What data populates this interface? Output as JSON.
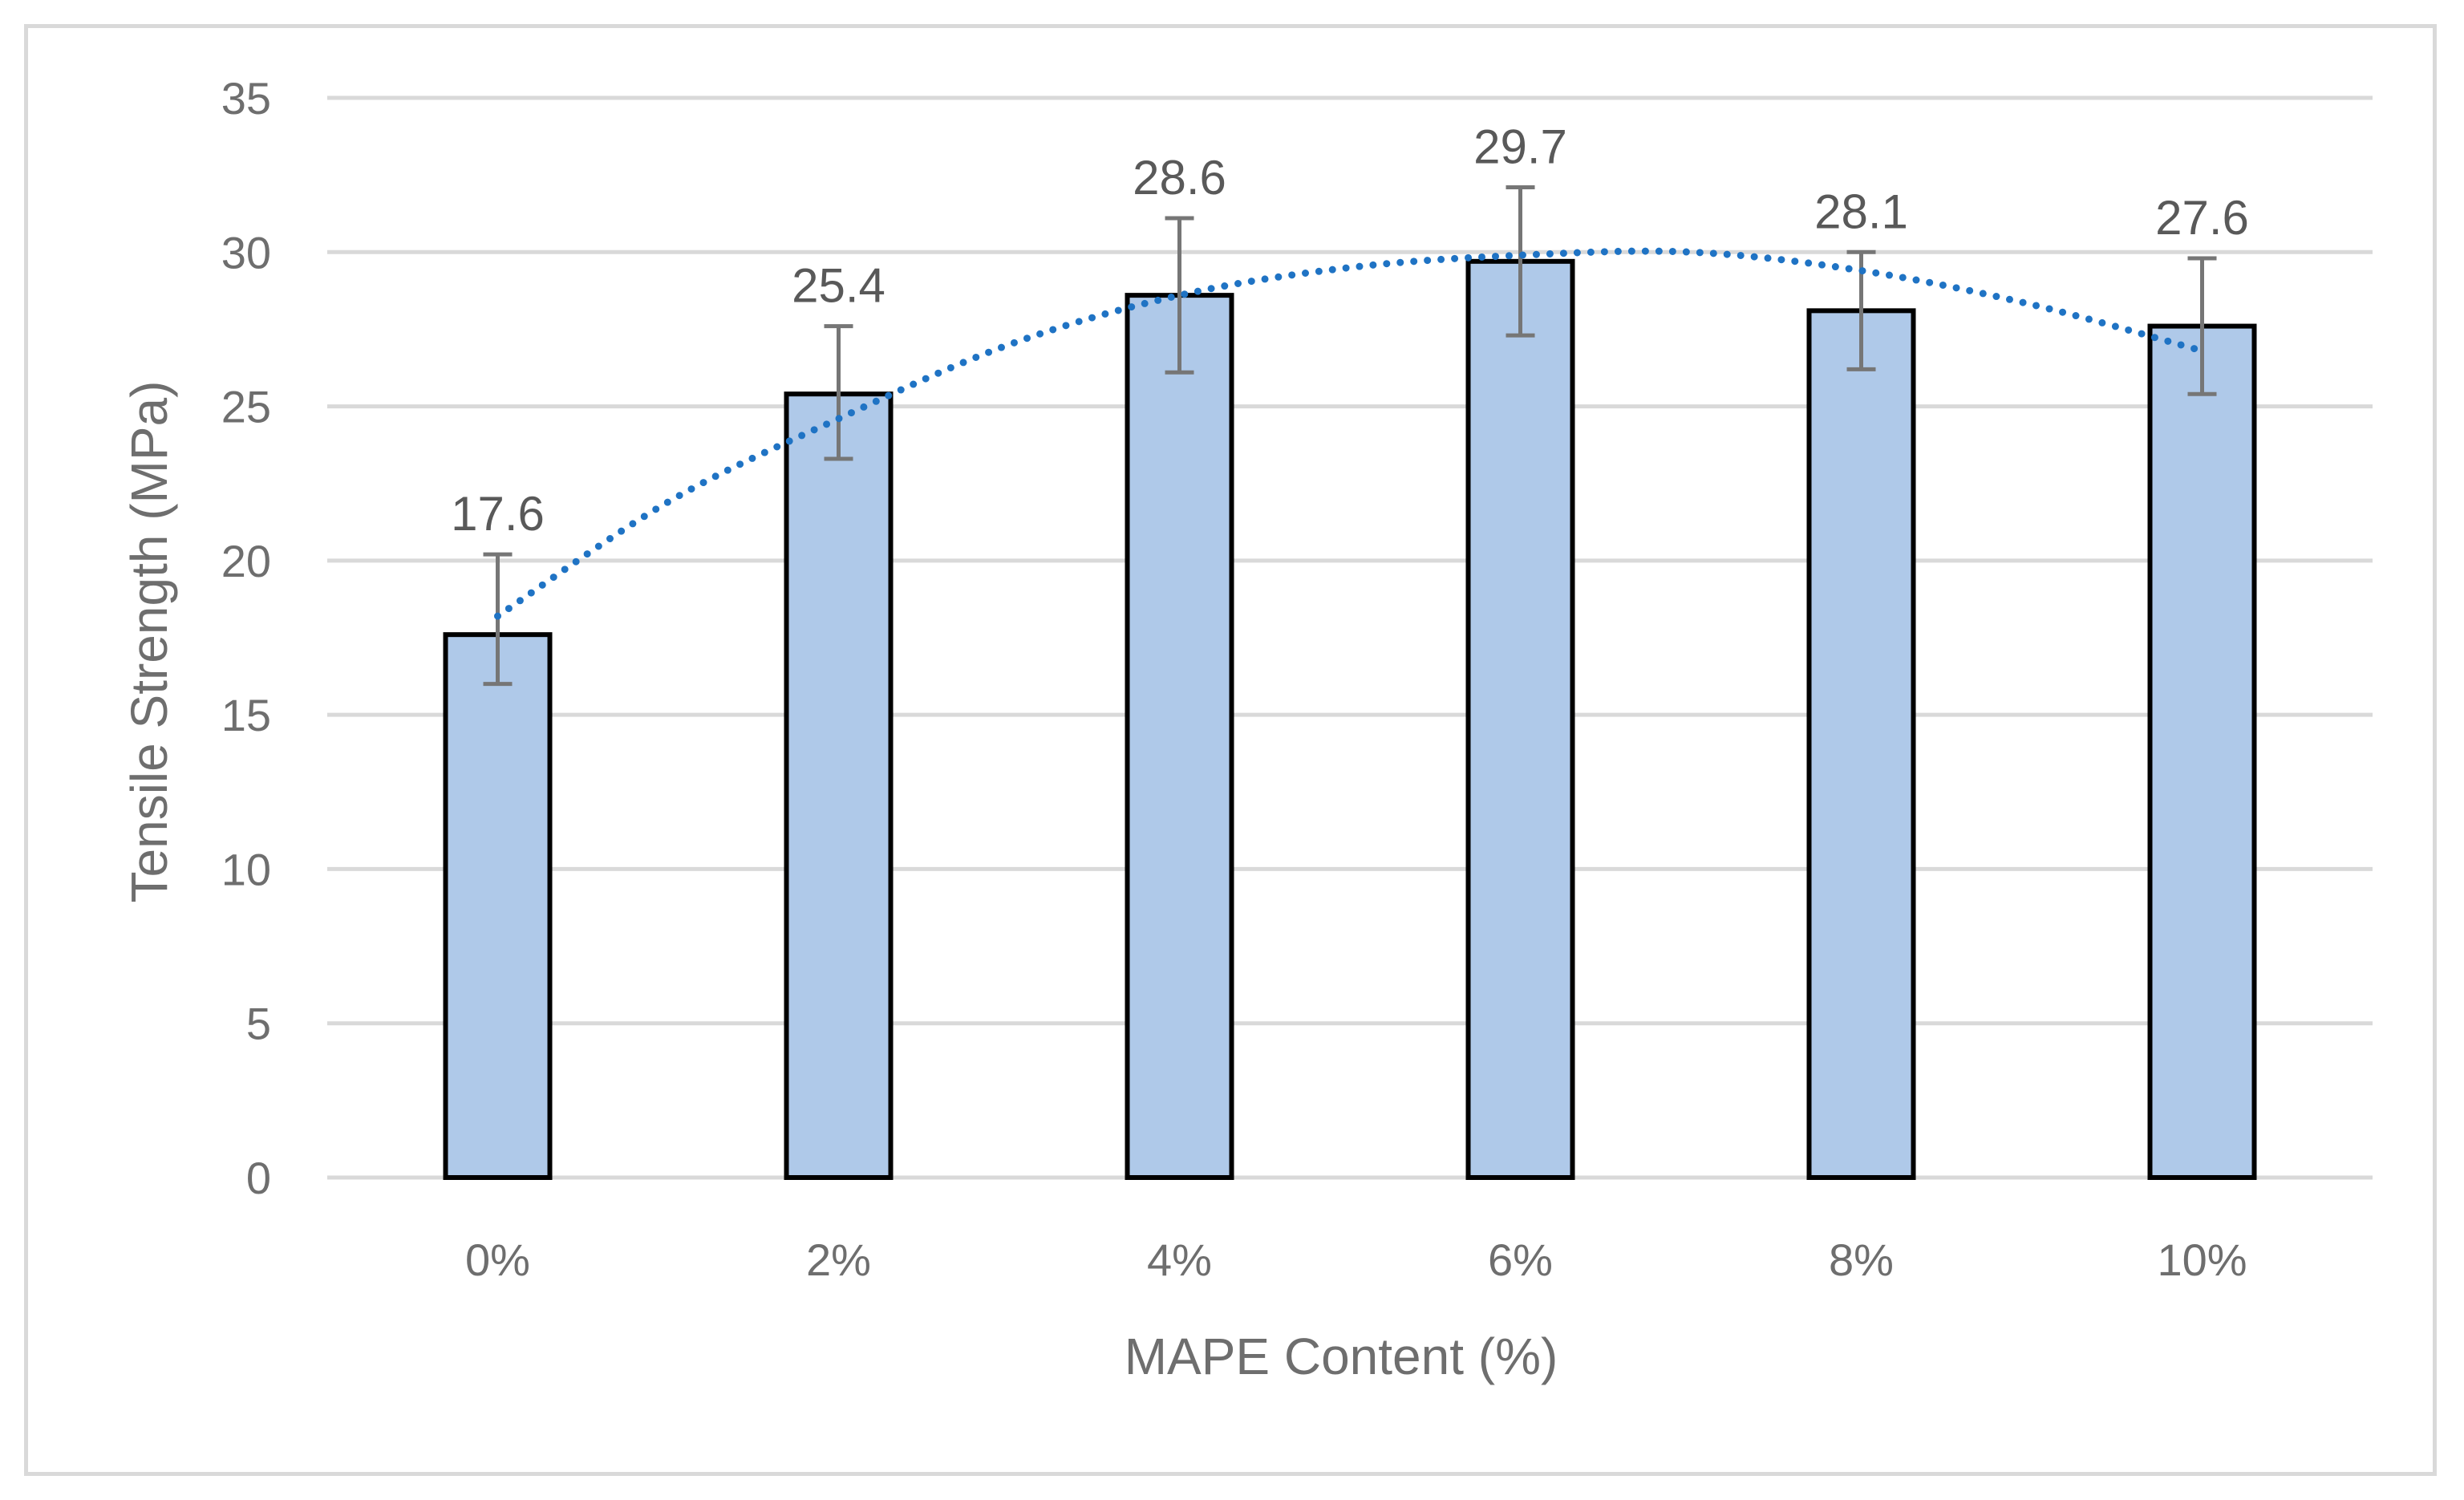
{
  "chart_data": {
    "type": "bar",
    "categories": [
      "0%",
      "2%",
      "4%",
      "6%",
      "8%",
      "10%"
    ],
    "values": [
      17.6,
      25.4,
      28.6,
      29.7,
      28.1,
      27.6
    ],
    "error_bars": [
      {
        "low": 16.0,
        "high": 20.2
      },
      {
        "low": 23.3,
        "high": 27.6
      },
      {
        "low": 26.1,
        "high": 31.1
      },
      {
        "low": 27.3,
        "high": 32.1
      },
      {
        "low": 26.2,
        "high": 30.0
      },
      {
        "low": 25.4,
        "high": 29.8
      }
    ],
    "data_labels": [
      "17.6",
      "25.4",
      "28.6",
      "29.7",
      "28.1",
      "27.6"
    ],
    "y_ticks": [
      "0",
      "5",
      "10",
      "15",
      "20",
      "25",
      "30",
      "35"
    ],
    "ylim": [
      0,
      35
    ],
    "xlabel": "MAPE Content (%)",
    "ylabel": "Tensile Strength (MPa)",
    "trendline": {
      "style": "dotted",
      "type": "polynomial",
      "points": [
        [
          0,
          18.2
        ],
        [
          1,
          21.9
        ],
        [
          2,
          24.6
        ],
        [
          3,
          27.0
        ],
        [
          4,
          28.6
        ],
        [
          5,
          29.5
        ],
        [
          6,
          29.9
        ],
        [
          7,
          30.0
        ],
        [
          8,
          29.4
        ],
        [
          9,
          28.3
        ],
        [
          10,
          26.8
        ]
      ]
    },
    "grid": true,
    "legend": "none",
    "colors": {
      "bar_fill": "#afc9e9",
      "bar_stroke": "#000000",
      "trendline": "#1f73c4",
      "grid": "#d9d9d9",
      "error_bar": "#767676",
      "text": "#6e6e6e"
    }
  }
}
